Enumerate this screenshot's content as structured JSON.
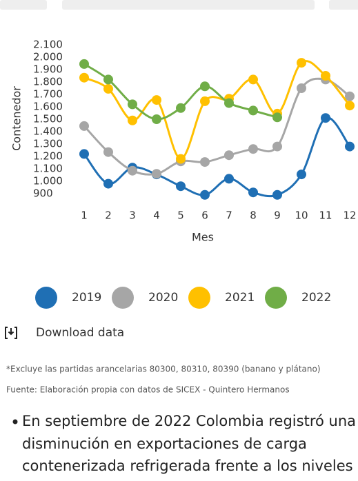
{
  "chart_data": {
    "type": "line",
    "x_label": "Mes",
    "y_label": "Contenedor",
    "categories": [
      1,
      2,
      3,
      4,
      5,
      6,
      7,
      8,
      9,
      10,
      11,
      12
    ],
    "series": [
      {
        "name": "2019",
        "color": "#1f6fb4",
        "values": [
          1220,
          980,
          1110,
          1055,
          960,
          890,
          1020,
          910,
          890,
          1055,
          1510,
          1280
        ]
      },
      {
        "name": "2020",
        "color": "#a6a6a6",
        "values": [
          1445,
          1235,
          1085,
          1060,
          1160,
          1155,
          1210,
          1260,
          1280,
          1750,
          1820,
          1685
        ]
      },
      {
        "name": "2021",
        "color": "#ffc000",
        "values": [
          1835,
          1745,
          1490,
          1655,
          1180,
          1645,
          1665,
          1820,
          1545,
          1955,
          1850,
          1610
        ]
      },
      {
        "name": "2022",
        "color": "#70ad47",
        "values": [
          1945,
          1820,
          1620,
          1500,
          1590,
          1765,
          1630,
          1570,
          1515,
          null,
          null,
          null
        ]
      }
    ],
    "ylim": [
      900,
      2100
    ],
    "yticks": [
      {
        "value": 2100,
        "label": "2.100"
      },
      {
        "value": 2000,
        "label": "2.000"
      },
      {
        "value": 1900,
        "label": "1.900"
      },
      {
        "value": 1800,
        "label": "1.800"
      },
      {
        "value": 1700,
        "label": "1.700"
      },
      {
        "value": 1600,
        "label": "1.600"
      },
      {
        "value": 1500,
        "label": "1.500"
      },
      {
        "value": 1400,
        "label": "1.400"
      },
      {
        "value": 1300,
        "label": "1.300"
      },
      {
        "value": 1200,
        "label": "1.200"
      },
      {
        "value": 1100,
        "label": "1.100"
      },
      {
        "value": 1000,
        "label": "1.000"
      },
      {
        "value": 900,
        "label": "900"
      }
    ],
    "grid": false,
    "legend": "bottom"
  },
  "download": "Download data",
  "notes": [
    "*Excluye las partidas arancelarias 80300, 80310, 80390 (banano y plátano)",
    "Fuente: Elaboración propia con datos de SICEX - Quintero Hermanos"
  ],
  "bullet_lines": [
    "En septiembre de 2022 Colombia registró una",
    "disminución en exportaciones de carga",
    "contenerizada refrigerada frente a los niveles de"
  ]
}
